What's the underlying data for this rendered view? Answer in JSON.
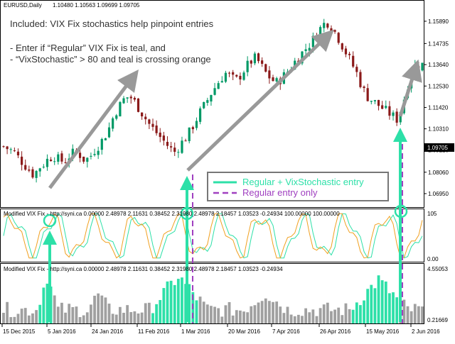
{
  "symbol_header": {
    "symbol": "EURUSD,Daily",
    "ohlc": "1.10480 1.10563 1.09699 1.09705"
  },
  "annotation": {
    "line1": "Included: VIX Fix stochastics help pinpoint entries",
    "line2": "- Enter if “Regular” VIX Fix is teal, and",
    "line3": "- “VixStochastic” > 80 and teal is crossing orange"
  },
  "legend": {
    "item1": "Regular + VixStochastic entry",
    "item2": "Regular entry only"
  },
  "price_axis": {
    "ticks": [
      "1.15890",
      "1.14735",
      "1.13640",
      "1.12530",
      "1.11420",
      "1.10310",
      "1.09210",
      "1.08060",
      "1.06950"
    ],
    "current_price": "1.09705"
  },
  "stoch_panel": {
    "title": "Modified VIX Fix - http://syni.ca 0.00000 2.48978 2.11631 0.38452 2.31980 2.48978 2.18457 1.03523 -0.24934 100.00000 100.00000",
    "axis_top": "105",
    "axis_bottom": "0.00"
  },
  "vix_panel": {
    "title": "Modified VIX Fix - http://syni.ca 0.00000 2.48978 2.11631 0.38452 2.31980 2.48978 2.18457 1.03523 -0.24934",
    "axis_top": "4.55053",
    "axis_bottom": "0.21669"
  },
  "date_axis": [
    "15 Dec 2015",
    "5 Jan 2016",
    "24 Jan 2016",
    "11 Feb 2016",
    "1 Mar 2016",
    "20 Mar 2016",
    "7 Apr 2016",
    "26 Apr 2016",
    "15 May 2016",
    "2 Jun 2016"
  ],
  "colors": {
    "teal": "#2de0a8",
    "orange": "#f0a020",
    "up_candle": "#009966",
    "down_candle": "#8b1a1a",
    "purple": "#a040c0",
    "gray_bar": "#a0a0a0",
    "arrow_gray": "#999999"
  },
  "chart_data": {
    "type": "candlestick",
    "price_ylim": [
      1.0625,
      1.1655
    ],
    "close_path": [
      1.094,
      1.0925,
      1.0915,
      1.088,
      1.085,
      1.082,
      1.079,
      1.083,
      1.085,
      1.088,
      1.089,
      1.087,
      1.086,
      1.089,
      1.091,
      1.09,
      1.087,
      1.088,
      1.092,
      1.095,
      1.099,
      1.104,
      1.111,
      1.115,
      1.119,
      1.12,
      1.117,
      1.113,
      1.109,
      1.105,
      1.102,
      1.099,
      1.096,
      1.093,
      1.091,
      1.095,
      1.098,
      1.102,
      1.107,
      1.112,
      1.116,
      1.121,
      1.125,
      1.129,
      1.132,
      1.13,
      1.128,
      1.131,
      1.135,
      1.138,
      1.14,
      1.136,
      1.132,
      1.129,
      1.127,
      1.129,
      1.132,
      1.135,
      1.139,
      1.142,
      1.145,
      1.148,
      1.152,
      1.156,
      1.159,
      1.156,
      1.152,
      1.147,
      1.142,
      1.137,
      1.132,
      1.125,
      1.12,
      1.118,
      1.116,
      1.114,
      1.112,
      1.11,
      1.108,
      1.115,
      1.125,
      1.135,
      1.136,
      1.1365
    ],
    "entries_regular_plus_stochastic": [
      "5 Jan 2016",
      "1 Mar 2016",
      "28 May 2016"
    ],
    "entries_regular_only": [
      "1 Mar 2016",
      "28 May 2016"
    ]
  }
}
